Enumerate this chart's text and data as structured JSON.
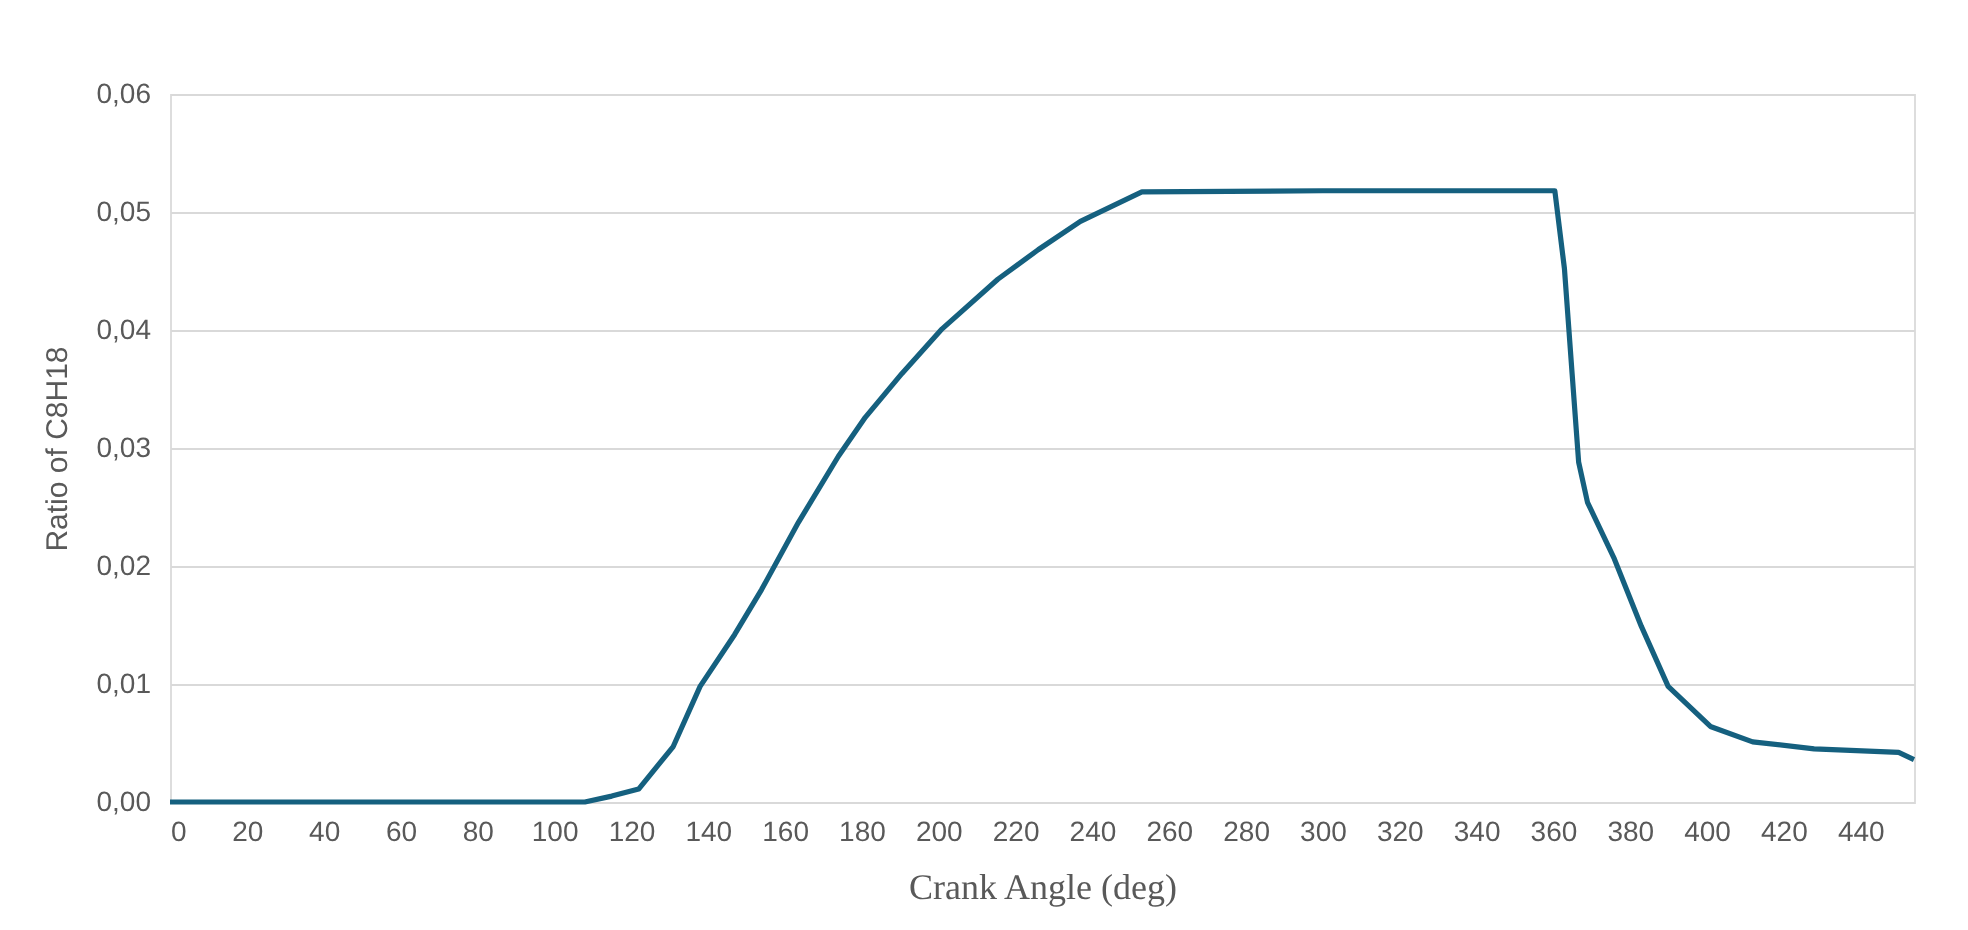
{
  "chart_data": {
    "type": "line",
    "xlabel": "Crank Angle (deg)",
    "ylabel": "Ratio of C8H18",
    "series": [
      {
        "color": "#15607f",
        "x": [
          0,
          20,
          40,
          60,
          80,
          100,
          108,
          115,
          122,
          131,
          138,
          147,
          154,
          163.6,
          174,
          181,
          190.5,
          201,
          215.5,
          226,
          237,
          253,
          300,
          360.5,
          363,
          365,
          366.7,
          369,
          376,
          383,
          390,
          401,
          412,
          428,
          450,
          454
        ],
        "values": [
          0,
          0,
          0,
          0,
          0,
          0,
          0,
          0.0005,
          0.0011,
          0.0047,
          0.0098,
          0.0142,
          0.018,
          0.0237,
          0.0293,
          0.0326,
          0.0363,
          0.0401,
          0.0443,
          0.0468,
          0.0492,
          0.0517,
          0.0518,
          0.0518,
          0.0452,
          0.0363,
          0.0288,
          0.0254,
          0.0206,
          0.0149,
          0.0098,
          0.0064,
          0.0051,
          0.0045,
          0.0042,
          0.0036
        ]
      }
    ],
    "xlim": [
      0,
      454
    ],
    "xticks": [
      0,
      20,
      40,
      60,
      80,
      100,
      120,
      140,
      160,
      180,
      200,
      220,
      240,
      260,
      280,
      300,
      320,
      340,
      360,
      380,
      400,
      420,
      440
    ],
    "ylim": [
      0,
      0.06
    ],
    "yticks": [
      {
        "value": 0,
        "label": "0,00"
      },
      {
        "value": 0.01,
        "label": "0,01"
      },
      {
        "value": 0.02,
        "label": "0,02"
      },
      {
        "value": 0.03,
        "label": "0,03"
      },
      {
        "value": 0.04,
        "label": "0,04"
      },
      {
        "value": 0.05,
        "label": "0,05"
      },
      {
        "value": 0.06,
        "label": "0,06"
      }
    ],
    "grid": "y",
    "marker": "none",
    "line_style": "solid"
  }
}
